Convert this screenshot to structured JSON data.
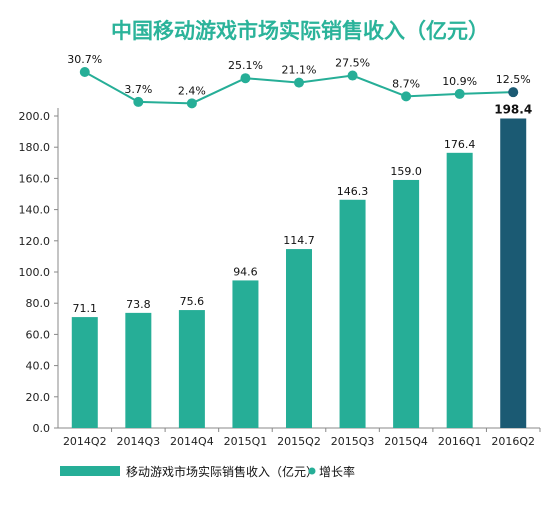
{
  "chart_data": {
    "type": "bar",
    "title": "中国移动游戏市场实际销售收入（亿元）",
    "categories": [
      "2014Q2",
      "2014Q3",
      "2014Q4",
      "2015Q1",
      "2015Q2",
      "2015Q3",
      "2015Q4",
      "2016Q1",
      "2016Q2"
    ],
    "series": [
      {
        "name": "移动游戏市场实际销售收入（亿元）",
        "type": "bar",
        "values": [
          71.1,
          73.8,
          75.6,
          94.6,
          114.7,
          146.3,
          159.0,
          176.4,
          198.4
        ],
        "labels": [
          "71.1",
          "73.8",
          "75.6",
          "94.6",
          "114.7",
          "146.3",
          "159.0",
          "176.4",
          "198.4"
        ]
      },
      {
        "name": "增长率",
        "type": "line",
        "values": [
          30.7,
          3.7,
          2.4,
          25.1,
          21.1,
          27.5,
          8.7,
          10.9,
          12.5
        ],
        "labels": [
          "30.7%",
          "3.7%",
          "2.4%",
          "25.1%",
          "21.1%",
          "27.5%",
          "8.7%",
          "10.9%",
          "12.5%"
        ]
      }
    ],
    "y_ticks": [
      "0.0",
      "20.0",
      "40.0",
      "60.0",
      "80.0",
      "100.0",
      "120.0",
      "140.0",
      "160.0",
      "180.0",
      "200.0"
    ],
    "ylim": [
      0,
      200
    ],
    "highlight_index": 8,
    "colors": {
      "bar": "#26ae97",
      "highlight": "#1b5a73",
      "title": "#2bb39a",
      "axis": "#888888"
    },
    "grid": false,
    "legend_position": "bottom-left"
  }
}
